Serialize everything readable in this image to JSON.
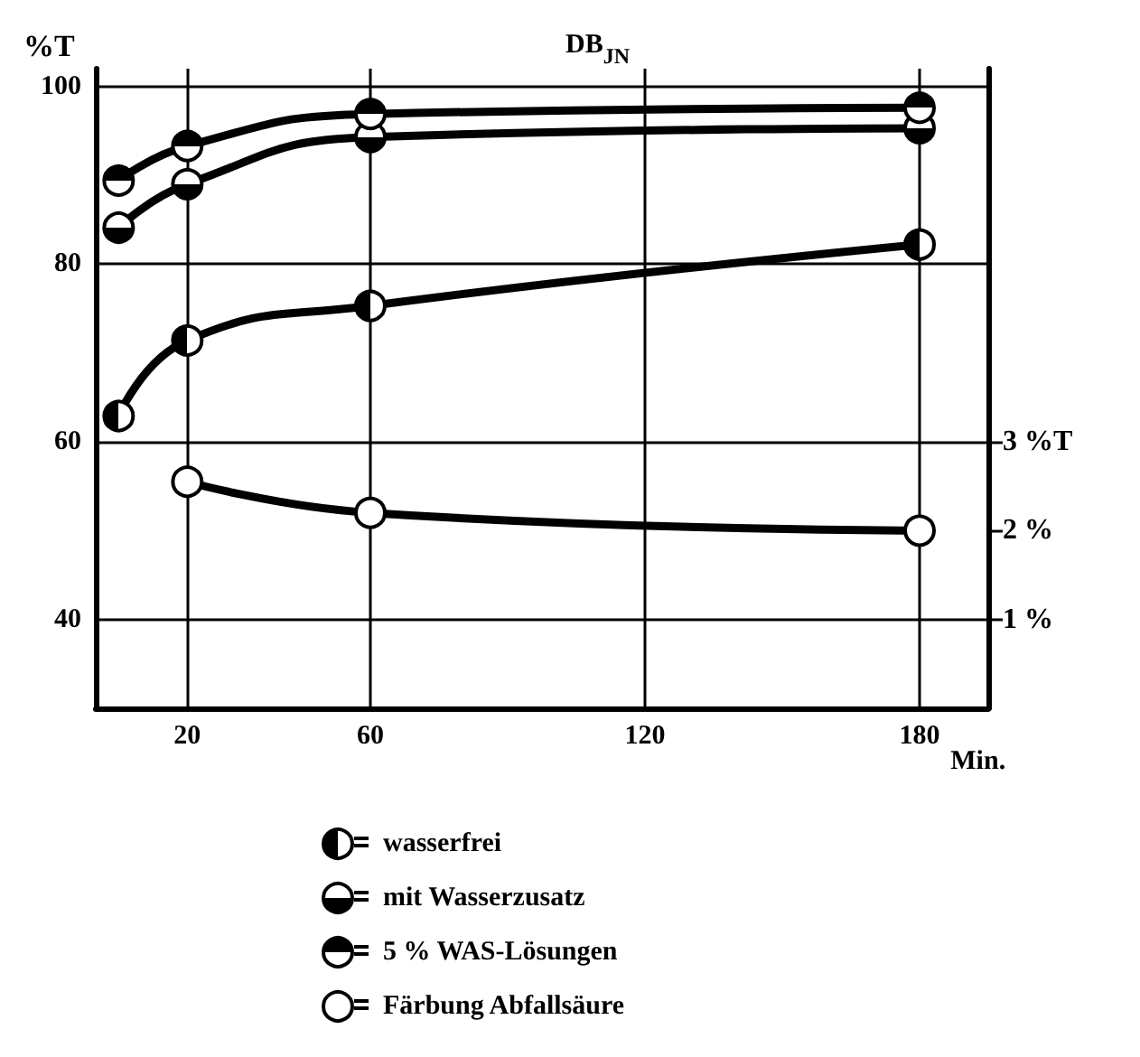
{
  "chart_data": {
    "type": "line",
    "title": "DB$_{JN}$",
    "ylabel": "%T",
    "xlabel": "Min.",
    "xlim": [
      0,
      195
    ],
    "xticks": [
      20,
      60,
      120,
      180
    ],
    "ylim": [
      30,
      102
    ],
    "yticks": [
      40,
      60,
      80,
      100
    ],
    "y2lim": [
      0,
      7.2
    ],
    "y2ticks": [
      {
        "value": 1,
        "label": "1 %"
      },
      {
        "value": 2,
        "label": "2 %"
      },
      {
        "value": 3,
        "label": "3 %T"
      }
    ],
    "grid": true,
    "legend": "bottom",
    "marker": "circle",
    "line_style": "solid",
    "series": [
      {
        "name": "wasserfrei",
        "color": "#000000",
        "x": [
          5,
          20,
          60,
          180
        ],
        "values": [
          62.9,
          71.4,
          75.3,
          82.2
        ]
      },
      {
        "name": "mit Wasserzusatz",
        "color": "#000000",
        "x": [
          5,
          20,
          60,
          180
        ],
        "values": [
          84.1,
          89.0,
          94.3,
          95.3
        ]
      },
      {
        "name": "5 % WAS-Lösungen",
        "color": "#000000",
        "x": [
          5,
          20,
          60,
          180
        ],
        "values": [
          89.4,
          93.3,
          96.9,
          97.6
        ]
      },
      {
        "name": "Färbung Abfallsäure",
        "color": "#000000",
        "axis": "y2",
        "x": [
          20,
          60,
          180
        ],
        "values": [
          2.55,
          2.2,
          2.0
        ]
      }
    ]
  }
}
